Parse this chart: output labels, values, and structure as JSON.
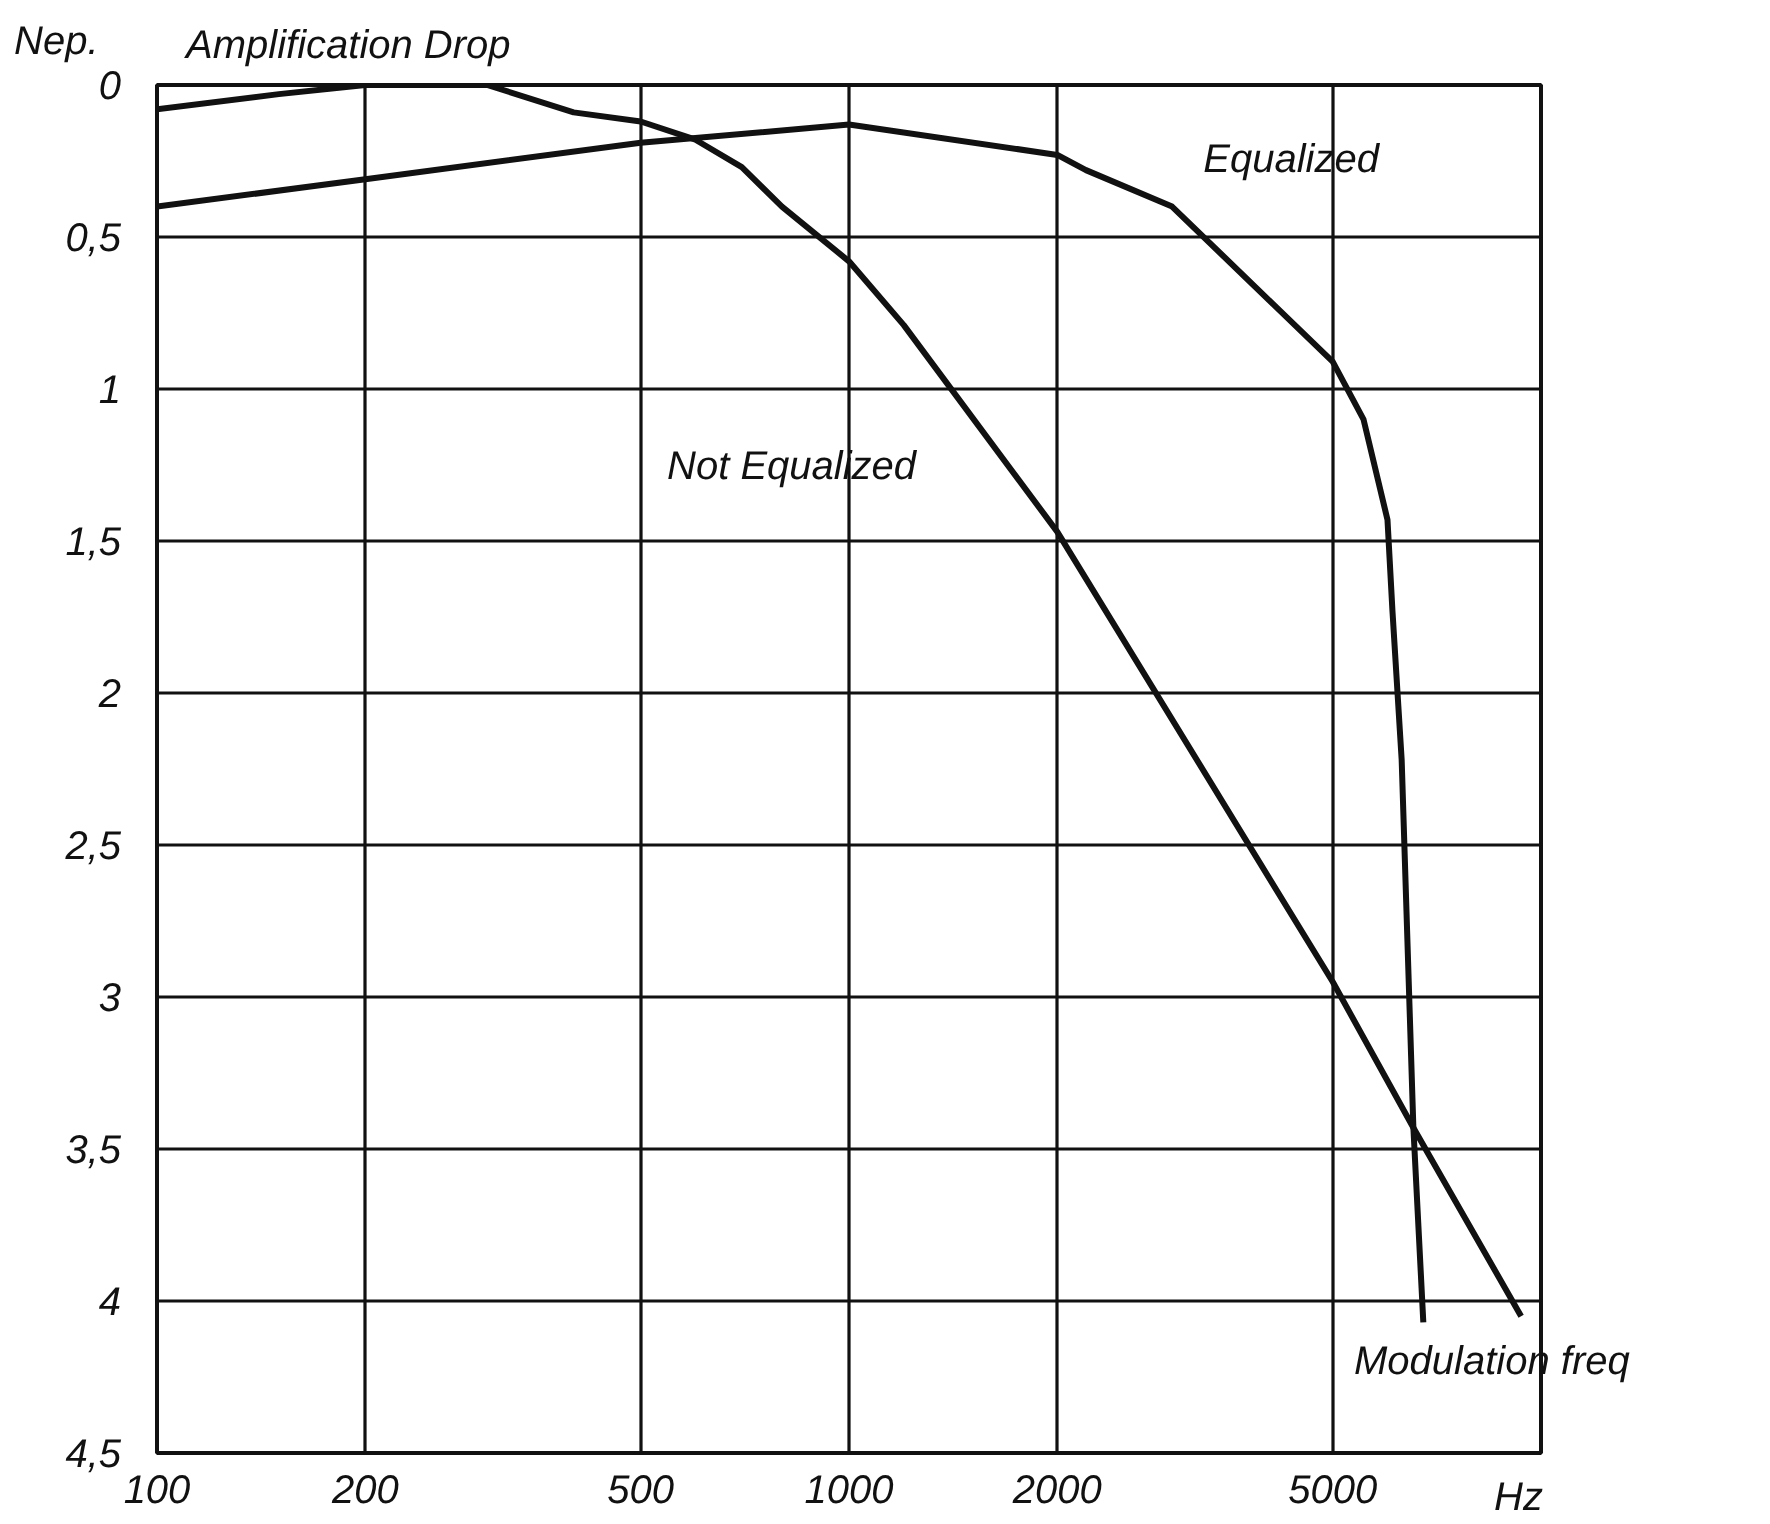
{
  "chart_data": {
    "type": "line",
    "ylabel": "Nep.",
    "xlabel": "Modulation freq",
    "log": "x",
    "grid": true,
    "legend": false,
    "marker": "none",
    "line_style": "solid",
    "annotations": [
      "Amplification Drop",
      "Hz"
    ],
    "xlim": [
      100,
      10000
    ],
    "xticks": [
      100,
      200,
      500,
      1000,
      2000,
      5000
    ],
    "ylim": [
      4.5,
      0
    ],
    "yticks": [
      0,
      {
        "value": 0.5,
        "label": "0,5"
      },
      1,
      {
        "value": 1.5,
        "label": "1,5"
      },
      2,
      {
        "value": 2.5,
        "label": "2,5"
      },
      3,
      {
        "value": 3.5,
        "label": "3,5"
      },
      4,
      {
        "value": 4.5,
        "label": "4,5"
      }
    ],
    "series": [
      {
        "name": "Not Equalized",
        "color": "#111111",
        "x": [
          100,
          150,
          200,
          300,
          400,
          500,
          600,
          700,
          800,
          1000,
          1200,
          2000,
          5000,
          6540,
          9360
        ],
        "values": [
          0.08,
          0.03,
          0.0,
          0.0,
          0.09,
          0.12,
          0.18,
          0.27,
          0.4,
          0.58,
          0.79,
          1.47,
          2.95,
          3.43,
          4.05
        ]
      },
      {
        "name": "Equalized",
        "color": "#111111",
        "x": [
          100,
          200,
          500,
          1000,
          2000,
          2200,
          2930,
          5000,
          5540,
          6000,
          6100,
          6290,
          6540,
          6760
        ],
        "values": [
          0.4,
          0.31,
          0.19,
          0.13,
          0.23,
          0.28,
          0.4,
          0.91,
          1.1,
          1.43,
          1.73,
          2.22,
          3.43,
          4.07
        ]
      }
    ]
  }
}
